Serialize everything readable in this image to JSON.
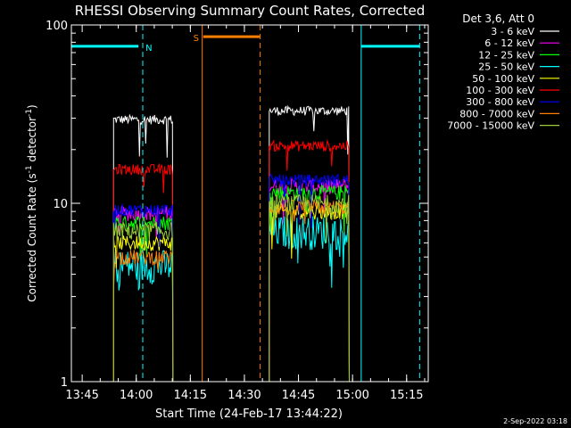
{
  "chart_data": {
    "type": "line",
    "title": "RHESSI Observing Summary Count Rates, Corrected",
    "xlabel": "Start Time (24-Feb-17 13:44:22)",
    "ylabel_prefix": "Corrected Count Rate (s",
    "ylabel_sup1": "-1",
    "ylabel_mid": " detector",
    "ylabel_sup2": "-1",
    "ylabel_suffix": ")",
    "y_scale": "log",
    "ylim": [
      1,
      100
    ],
    "xlim_minutes": [
      13.7,
      15.35
    ],
    "x_ticks": [
      {
        "label": "13:45",
        "value": 13.75
      },
      {
        "label": "14:00",
        "value": 14.0
      },
      {
        "label": "14:15",
        "value": 14.25
      },
      {
        "label": "14:30",
        "value": 14.5
      },
      {
        "label": "14:45",
        "value": 14.75
      },
      {
        "label": "15:00",
        "value": 15.0
      },
      {
        "label": "15:15",
        "value": 15.25
      }
    ],
    "y_ticks": [
      {
        "label": "1",
        "value": 1
      },
      {
        "label": "10",
        "value": 10
      },
      {
        "label": "100",
        "value": 100
      }
    ],
    "legend_header": "Det 3,6, Att 0",
    "legend_position": "top-right-outside",
    "series": [
      {
        "name": "3 - 6 keV",
        "color": "#ffffff",
        "seg1": 29.5,
        "seg2": 33.0,
        "noise": 0.06
      },
      {
        "name": "6 - 12 keV",
        "color": "#ff00ff",
        "seg1": 8.8,
        "seg2": 12.5,
        "noise": 0.1
      },
      {
        "name": "12 - 25 keV",
        "color": "#00ff00",
        "seg1": 7.8,
        "seg2": 11.5,
        "noise": 0.1
      },
      {
        "name": "25 - 50 keV",
        "color": "#00ffff",
        "seg1": 4.5,
        "seg2": 7.0,
        "noise": 0.22
      },
      {
        "name": "50 - 100 keV",
        "color": "#ffff00",
        "seg1": 6.0,
        "seg2": 9.0,
        "noise": 0.1
      },
      {
        "name": "100 - 300 keV",
        "color": "#ff0000",
        "seg1": 15.5,
        "seg2": 21.0,
        "noise": 0.07
      },
      {
        "name": "300 - 800 keV",
        "color": "#0000ff",
        "seg1": 9.2,
        "seg2": 13.5,
        "noise": 0.08
      },
      {
        "name": "800 - 7000 keV",
        "color": "#ff7f00",
        "seg1": 5.0,
        "seg2": 9.5,
        "noise": 0.1
      },
      {
        "name": "7000 - 15000 keV",
        "color": "#99cc33",
        "seg1": 7.0,
        "seg2": 10.0,
        "noise": 0.12
      }
    ],
    "data_segments": [
      {
        "start": 13.895,
        "end": 14.17
      },
      {
        "start": 14.615,
        "end": 14.985
      }
    ],
    "flags": [
      {
        "label": "N",
        "color": "#00ffff",
        "solid_at": 13.7,
        "dashed_at": 14.03,
        "bar_from": 13.7,
        "bar_to": 14.01,
        "bar_y": 76
      },
      {
        "label": "",
        "color": "#00ffff",
        "solid_at": 15.04,
        "dashed_at": 15.31,
        "bar_from": 15.04,
        "bar_to": 15.31,
        "bar_y": 76
      },
      {
        "label": "S",
        "color": "#ff7f00",
        "solid_at": 14.305,
        "dashed_at": 14.573,
        "bar_from": 14.31,
        "bar_to": 14.57,
        "bar_y": 86
      }
    ],
    "grid": false,
    "timestamp": "2-Sep-2022 03:18"
  }
}
